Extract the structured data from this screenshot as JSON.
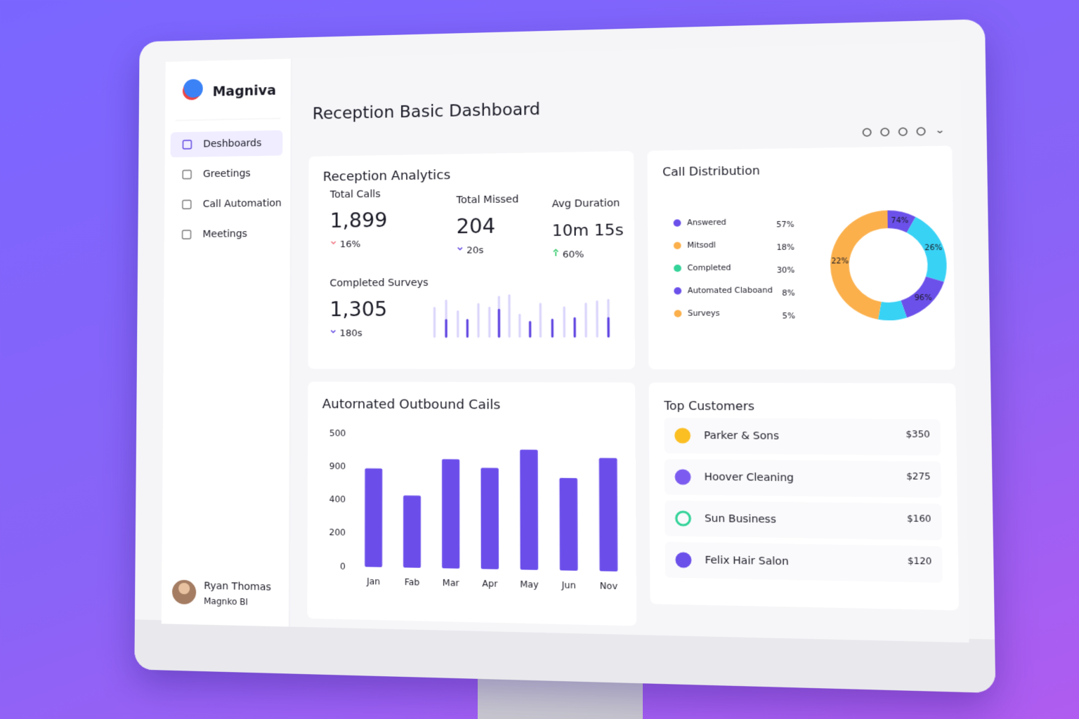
{
  "brand": "Magniva",
  "page_title": "Reception Basic Dashboard",
  "nav": [
    "Deshboards",
    "Greetings",
    "Call Automation",
    "Meetings"
  ],
  "user": {
    "name": "Ryan Thomas",
    "subtitle": "Magnko Bl"
  },
  "analytics": {
    "title": "Reception Analytics",
    "stats": [
      {
        "label": "Total Calls",
        "value": "1,899",
        "change": "16%"
      },
      {
        "label": "Total Missed",
        "value": "204",
        "change": "20s"
      },
      {
        "label": "Avg Duration",
        "value": "10m 15s",
        "change": "60%"
      },
      {
        "label": "Completed Surveys",
        "value": "1,305",
        "change": "180s"
      }
    ]
  },
  "call_distribution": {
    "title": "Call Distribution",
    "legend": [
      {
        "name": "Answered",
        "value": "57%",
        "color": "#6c50ea"
      },
      {
        "name": "Mitsodl",
        "value": "18%",
        "color": "#fbb04c"
      },
      {
        "name": "Completed",
        "value": "30%",
        "color": "#34d399"
      },
      {
        "name": "Automated Claboand",
        "value": "8%",
        "color": "#6c50ea"
      },
      {
        "name": "Surveys",
        "value": "5%",
        "color": "#fbb04c"
      }
    ],
    "donut": [
      {
        "share": 8,
        "color": "#6c50ea",
        "label": "74%"
      },
      {
        "share": 22,
        "color": "#38d2f5",
        "label": "26%"
      },
      {
        "share": 15,
        "color": "#6c50ea",
        "label": "96%"
      },
      {
        "share": 8,
        "color": "#38d2f5"
      },
      {
        "share": 47,
        "color": "#fbb04c",
        "label": "22%"
      }
    ]
  },
  "outbound": {
    "type": "bar",
    "title": "Autornated Outbound Cails",
    "categories": [
      "Jan",
      "Fab",
      "Mar",
      "Apr",
      "May",
      "Jun",
      "Nov"
    ],
    "values": [
      590,
      430,
      650,
      600,
      710,
      545,
      665
    ],
    "ylim": [
      0,
      800
    ],
    "y_axis_labels": [
      "500",
      "900",
      "400",
      "200",
      "0"
    ],
    "color": "#6b4eea"
  },
  "top_customers": {
    "title": "Top Customers",
    "rows": [
      {
        "name": "Parker & Sons",
        "amount": "$350"
      },
      {
        "name": "Hoover Cleaning",
        "amount": "$275"
      },
      {
        "name": "Sun Business",
        "amount": "$160"
      },
      {
        "name": "Felix Hair Salon",
        "amount": "$120"
      }
    ]
  }
}
